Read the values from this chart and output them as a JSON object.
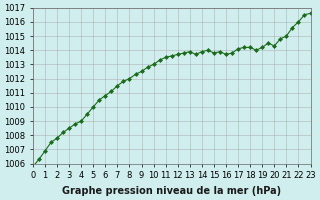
{
  "x": [
    0,
    0.5,
    1,
    1.5,
    2,
    2.5,
    3,
    3.5,
    4,
    4.5,
    5,
    5.5,
    6,
    6.5,
    7,
    7.5,
    8,
    8.5,
    9,
    9.5,
    10,
    10.5,
    11,
    11.5,
    12,
    12.5,
    13,
    13.5,
    14,
    14.5,
    15,
    15.5,
    16,
    16.5,
    17,
    17.5,
    18,
    18.5,
    19,
    19.5,
    20,
    20.5,
    21,
    21.5,
    22,
    22.5,
    23
  ],
  "y": [
    1005.8,
    1006.3,
    1006.9,
    1007.5,
    1007.8,
    1008.2,
    1008.5,
    1008.8,
    1009.0,
    1009.5,
    1010.0,
    1010.5,
    1010.8,
    1011.1,
    1011.5,
    1011.8,
    1012.0,
    1012.3,
    1012.5,
    1012.8,
    1013.0,
    1013.3,
    1013.5,
    1013.6,
    1013.7,
    1013.8,
    1013.9,
    1013.7,
    1013.9,
    1014.0,
    1013.8,
    1013.9,
    1013.7,
    1013.8,
    1014.1,
    1014.2,
    1014.2,
    1014.0,
    1014.2,
    1014.5,
    1014.3,
    1014.8,
    1015.0,
    1015.6,
    1016.0,
    1016.5,
    1016.6
  ],
  "line_color": "#1a6b1a",
  "marker_color": "#1a6b1a",
  "bg_color": "#d0eeee",
  "grid_color": "#aaaaaa",
  "xlabel": "Graphe pression niveau de la mer (hPa)",
  "ylim": [
    1006,
    1017
  ],
  "xlim": [
    0,
    23
  ],
  "yticks": [
    1006,
    1007,
    1008,
    1009,
    1010,
    1011,
    1012,
    1013,
    1014,
    1015,
    1016,
    1017
  ],
  "xticks": [
    0,
    1,
    2,
    3,
    4,
    5,
    6,
    7,
    8,
    9,
    10,
    11,
    12,
    13,
    14,
    15,
    16,
    17,
    18,
    19,
    20,
    21,
    22,
    23
  ],
  "xlabel_fontsize": 7,
  "tick_fontsize": 6,
  "xlabel_color": "#1a1a1a"
}
